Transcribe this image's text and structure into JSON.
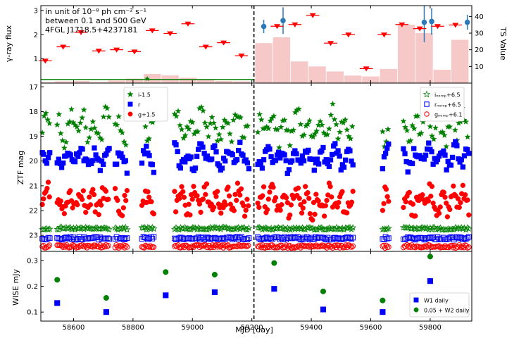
{
  "figure": {
    "xlabel": "MJD [day]",
    "xlim": [
      58490,
      59940
    ],
    "xticks": [
      58600,
      58800,
      59000,
      59200,
      59400,
      59600,
      59800
    ],
    "divider_mjd": 59207
  },
  "chart_data": [
    {
      "type": "scatter",
      "panel": "gamma-ray",
      "annotation": [
        "in unit of 10⁻⁸ ph cm⁻² s⁻¹",
        "between 0.1 and 500 GeV",
        "4FGL J1718.5+4237181"
      ],
      "ylabel": "γ-ray flux",
      "ylabel_right": "TS Value",
      "ylim": [
        0,
        3.2
      ],
      "yticks": [
        1,
        2,
        3
      ],
      "ylim_right": [
        0,
        46.5
      ],
      "yticks_right": [
        10,
        20,
        30,
        40
      ],
      "flux_points": {
        "x": [
          58505,
          58565,
          58625,
          58685,
          58745,
          58805,
          58865,
          58925,
          58985,
          59045,
          59105,
          59165,
          59285,
          59345,
          59405,
          59465,
          59525,
          59585,
          59645,
          59705,
          59765,
          59825,
          59885
        ],
        "y": [
          0.92,
          1.5,
          2.1,
          1.33,
          1.38,
          1.3,
          2.17,
          2.05,
          2.45,
          1.5,
          1.67,
          1.13,
          2.35,
          2.42,
          2.8,
          1.65,
          2.0,
          0.6,
          2.0,
          2.42,
          2.25,
          2.35,
          2.4
        ],
        "half_width_days": 22
      },
      "upper_limit_x": 58848,
      "ts_bars": {
        "x": [
          58505,
          58565,
          58625,
          58685,
          58745,
          58805,
          58865,
          58925,
          58985,
          59045,
          59105,
          59165,
          59240,
          59300,
          59360,
          59420,
          59480,
          59540,
          59600,
          59660,
          59720,
          59780,
          59840,
          59900
        ],
        "values": [
          0.5,
          1.0,
          1.3,
          0.7,
          1.5,
          2.7,
          5.5,
          4.6,
          3.2,
          2.0,
          1.3,
          1.0,
          24.0,
          27.5,
          13.0,
          10.0,
          7.0,
          4.5,
          4.0,
          8.5,
          35.0,
          30.0,
          8.0,
          26.0
        ],
        "bin_width_days": 58
      },
      "ts_points": {
        "x": [
          59240,
          59305,
          59780,
          59805,
          59925
        ],
        "y": [
          34.0,
          37.5,
          36.5,
          37.0,
          36.5
        ],
        "yerr": [
          4.0,
          8.0,
          12.0,
          8.0,
          4.5
        ]
      },
      "green_line": {
        "x": [
          58490,
          59207
        ],
        "y": 0.15
      }
    },
    {
      "type": "scatter",
      "panel": "ZTF",
      "ylabel": "ZTF mag",
      "ylim": [
        23.65,
        16.85
      ],
      "yticks": [
        17,
        18,
        19,
        20,
        21,
        22,
        23
      ],
      "legend_left": [
        "i-1.5",
        "r",
        "g+1.5"
      ],
      "legend_right": [
        "iₙₒₘₚ+6.5",
        "rₙₒₘₚ+6.5",
        "gₙₒₘₚ+6.1"
      ],
      "segments": [
        [
          58495,
          58520
        ],
        [
          58545,
          58720
        ],
        [
          58740,
          58780
        ],
        [
          58830,
          58870
        ],
        [
          58940,
          59190
        ],
        [
          59220,
          59540
        ],
        [
          59640,
          59660
        ],
        [
          59710,
          59930
        ]
      ],
      "series": [
        {
          "name": "i-1.5",
          "color": "#008000",
          "marker": "star",
          "base": 18.6,
          "amp": 0.45,
          "period": 40,
          "jitter": 0.35,
          "step": 6
        },
        {
          "name": "r",
          "color": "#0000ff",
          "marker": "square",
          "base": 19.85,
          "amp": 0.3,
          "period": 45,
          "jitter": 0.25,
          "step": 5
        },
        {
          "name": "g+1.5",
          "color": "#ff0000",
          "marker": "circle",
          "base": 21.6,
          "amp": 0.35,
          "period": 38,
          "jitter": 0.35,
          "step": 4
        },
        {
          "name": "i_comp+6.5",
          "color": "#008000",
          "marker": "star-open",
          "base": 22.73,
          "amp": 0.0,
          "period": 50,
          "jitter": 0.05,
          "step": 5
        },
        {
          "name": "r_comp+6.5",
          "color": "#0000ff",
          "marker": "square-open",
          "base": 23.12,
          "amp": 0.0,
          "period": 50,
          "jitter": 0.06,
          "step": 5
        },
        {
          "name": "g_comp+6.1",
          "color": "#ff0000",
          "marker": "circle-open",
          "base": 23.45,
          "amp": 0.0,
          "period": 50,
          "jitter": 0.06,
          "step": 4
        }
      ]
    },
    {
      "type": "scatter",
      "panel": "WISE",
      "ylabel": "WISE mJy",
      "ylim": [
        0.065,
        0.335
      ],
      "yticks": [
        0.1,
        0.2,
        0.3
      ],
      "series": [
        {
          "name": "W1 daily",
          "color": "#0000ff",
          "marker": "square",
          "x": [
            58545,
            58710,
            58910,
            59075,
            59275,
            59440,
            59640,
            59800
          ],
          "y": [
            0.135,
            0.1,
            0.165,
            0.177,
            0.19,
            0.11,
            0.1,
            0.22
          ]
        },
        {
          "name": "0.05 + W2 daily",
          "color": "#008000",
          "marker": "circle",
          "x": [
            58545,
            58710,
            58910,
            59075,
            59275,
            59440,
            59640,
            59800
          ],
          "y": [
            0.225,
            0.155,
            0.255,
            0.245,
            0.29,
            0.18,
            0.145,
            0.315
          ]
        }
      ]
    }
  ]
}
